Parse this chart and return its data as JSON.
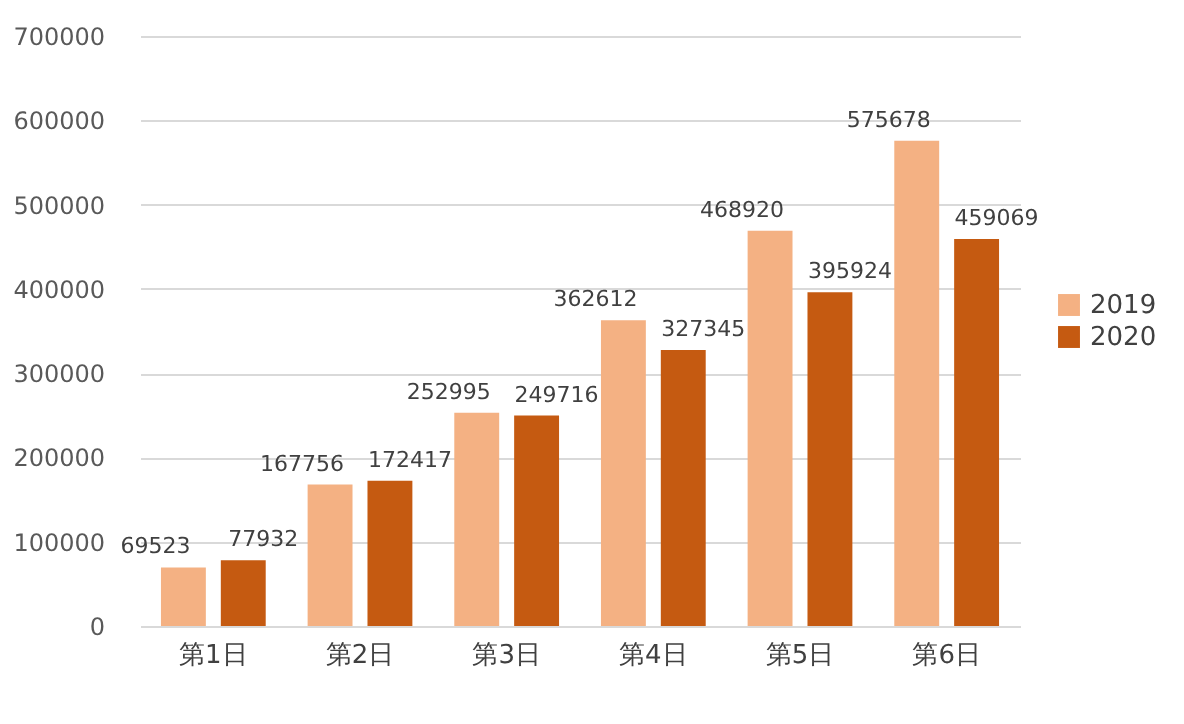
{
  "chart_data": {
    "type": "bar",
    "categories": [
      "第1日",
      "第2日",
      "第3日",
      "第4日",
      "第5日",
      "第6日"
    ],
    "series": [
      {
        "name": "2019",
        "color": "#f4b183",
        "values": [
          69523,
          167756,
          252995,
          362612,
          468920,
          575678
        ]
      },
      {
        "name": "2020",
        "color": "#c55a11",
        "values": [
          77932,
          172417,
          249716,
          327345,
          395924,
          459069
        ]
      }
    ],
    "ylim": [
      0,
      700000
    ],
    "yticks": [
      0,
      100000,
      200000,
      300000,
      400000,
      500000,
      600000,
      700000
    ],
    "grid": "y",
    "legend": "right",
    "data_labels": true
  }
}
